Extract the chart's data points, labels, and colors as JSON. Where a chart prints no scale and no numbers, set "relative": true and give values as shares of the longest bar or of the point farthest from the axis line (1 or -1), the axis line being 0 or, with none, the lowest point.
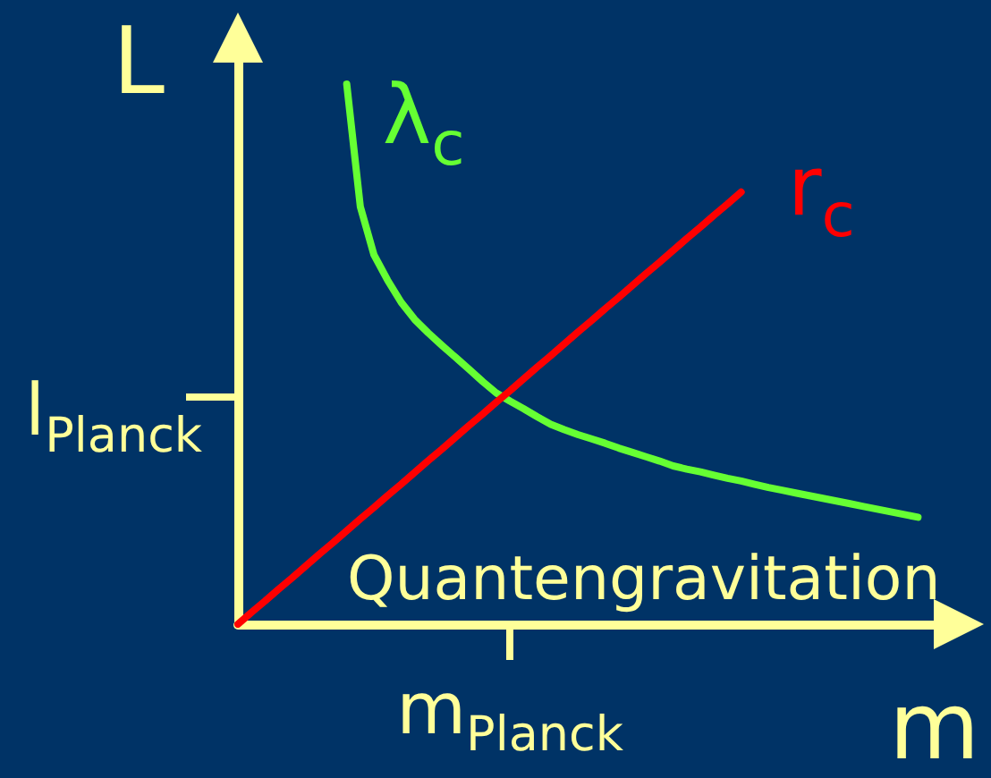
{
  "chart_data": {
    "type": "line",
    "xlabel": "m",
    "ylabel": "L",
    "relative": true,
    "marker": "none",
    "line_style": "solid",
    "annotations": [
      "Quantengravitation",
      "l$_{Planck}$",
      "m$_{Planck}$"
    ],
    "categories": [
      null,
      null,
      null,
      null,
      null,
      null,
      null,
      null,
      null,
      null,
      null,
      null,
      null,
      null,
      null,
      null,
      null,
      null,
      null,
      null,
      null,
      null,
      null,
      null,
      null,
      null,
      null,
      null,
      null,
      null,
      null,
      null,
      null,
      null,
      null,
      null,
      null,
      null,
      null,
      null,
      null,
      null,
      null,
      null,
      null,
      null,
      null,
      null,
      null,
      null,
      null,
      null,
      null,
      null
    ],
    "series": [
      {
        "name": "λ$_{c}$",
        "color": "#66ff33",
        "values": [
          null,
          null,
          null,
          null,
          null,
          null,
          null,
          null,
          1,
          0.773,
          0.684,
          0.637,
          0.596,
          0.564,
          0.539,
          0.516,
          0.494,
          0.472,
          0.449,
          0.428,
          0.413,
          0.399,
          0.384,
          0.37,
          0.36,
          0.351,
          0.343,
          0.335,
          0.326,
          0.318,
          0.31,
          0.302,
          0.293,
          0.287,
          0.282,
          0.276,
          0.27,
          0.265,
          0.259,
          0.253,
          0.248,
          0.243,
          0.238,
          0.233,
          0.228,
          0.223,
          0.218,
          0.213,
          0.208,
          0.203,
          0.198,
          null,
          null,
          null
        ]
      },
      {
        "name": "r$_{c}$",
        "color": "#ff0000",
        "values": [
          0,
          0.022,
          0.043,
          0.065,
          0.086,
          0.108,
          0.13,
          0.151,
          0.173,
          0.195,
          0.216,
          0.238,
          0.259,
          0.281,
          0.303,
          0.324,
          0.346,
          0.368,
          0.389,
          0.411,
          0.432,
          0.454,
          0.476,
          0.497,
          0.519,
          0.541,
          0.562,
          0.584,
          0.605,
          0.627,
          0.649,
          0.67,
          0.692,
          0.714,
          0.735,
          0.757,
          0.778,
          0.8,
          null,
          null,
          null,
          null,
          null,
          null,
          null,
          null,
          null,
          null,
          null,
          null,
          null,
          null,
          null,
          null
        ]
      }
    ]
  }
}
